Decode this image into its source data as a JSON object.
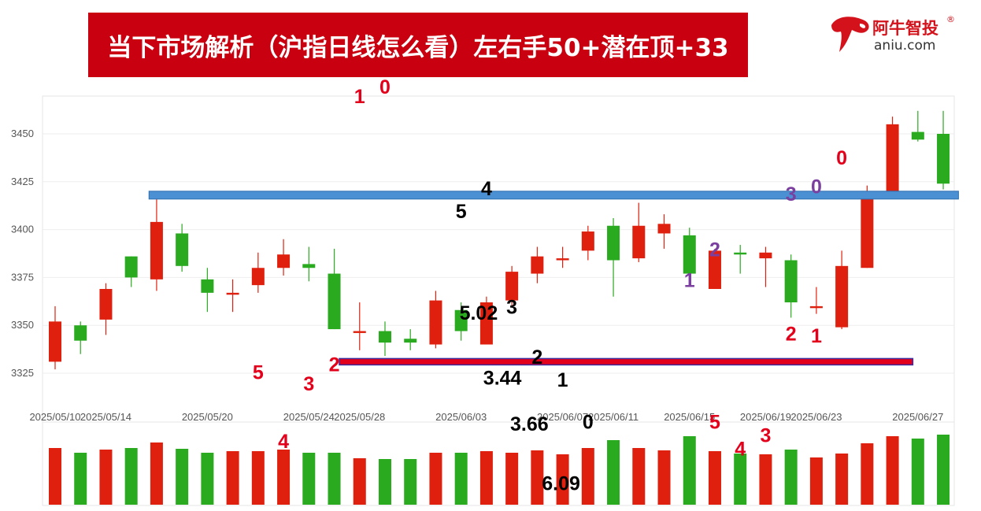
{
  "header": {
    "title": "当下市场解析（沪指日线怎么看）左右手50+潜在顶+33",
    "logo_cn": "阿牛智投",
    "logo_reg": "®",
    "logo_en": "aniu.com"
  },
  "colors": {
    "up": "#e0200e",
    "down": "#2aaa1f",
    "banner": "#c8000f",
    "resistance_line": "#4a90d2",
    "support_line": "#e3001b",
    "count_red": "#e3001b",
    "count_black": "#000000",
    "count_purple": "#7b3fa0"
  },
  "chart_data": {
    "type": "candlestick",
    "ylim": [
      3305,
      3465
    ],
    "yticks": [
      3325,
      3350,
      3375,
      3400,
      3425,
      3450
    ],
    "grid": true,
    "x_tick_labels": [
      {
        "i": 0,
        "label": "2025/05/10"
      },
      {
        "i": 2,
        "label": "2025/05/14"
      },
      {
        "i": 6,
        "label": "2025/05/20"
      },
      {
        "i": 10,
        "label": "2025/05/24"
      },
      {
        "i": 12,
        "label": "2025/05/28"
      },
      {
        "i": 16,
        "label": "2025/06/03"
      },
      {
        "i": 20,
        "label": "2025/06/07"
      },
      {
        "i": 22,
        "label": "2025/06/11"
      },
      {
        "i": 25,
        "label": "2025/06/15"
      },
      {
        "i": 28,
        "label": "2025/06/19"
      },
      {
        "i": 30,
        "label": "2025/06/23"
      },
      {
        "i": 34,
        "label": "2025/06/27"
      }
    ],
    "candles": [
      {
        "o": 3331,
        "c": 3352,
        "h": 3360,
        "l": 3327
      },
      {
        "o": 3350,
        "c": 3342,
        "h": 3352,
        "l": 3335
      },
      {
        "o": 3353,
        "c": 3369,
        "h": 3372,
        "l": 3345
      },
      {
        "o": 3386,
        "c": 3375,
        "h": 3386,
        "l": 3370
      },
      {
        "o": 3374,
        "c": 3404,
        "h": 3417,
        "l": 3368
      },
      {
        "o": 3398,
        "c": 3381,
        "h": 3403,
        "l": 3378
      },
      {
        "o": 3374,
        "c": 3367,
        "h": 3380,
        "l": 3357
      },
      {
        "o": 3366,
        "c": 3367,
        "h": 3374,
        "l": 3357
      },
      {
        "o": 3371,
        "c": 3380,
        "h": 3388,
        "l": 3367
      },
      {
        "o": 3380,
        "c": 3387,
        "h": 3395,
        "l": 3376
      },
      {
        "o": 3382,
        "c": 3380,
        "h": 3391,
        "l": 3373
      },
      {
        "o": 3377,
        "c": 3348,
        "h": 3390,
        "l": 3348
      },
      {
        "o": 3346,
        "c": 3347,
        "h": 3362,
        "l": 3337
      },
      {
        "o": 3347,
        "c": 3341,
        "h": 3352,
        "l": 3334
      },
      {
        "o": 3343,
        "c": 3341,
        "h": 3348,
        "l": 3337
      },
      {
        "o": 3340,
        "c": 3363,
        "h": 3368,
        "l": 3338
      },
      {
        "o": 3358,
        "c": 3347,
        "h": 3362,
        "l": 3342
      },
      {
        "o": 3340,
        "c": 3362,
        "h": 3365,
        "l": 3340
      },
      {
        "o": 3363,
        "c": 3378,
        "h": 3381,
        "l": 3360
      },
      {
        "o": 3377,
        "c": 3386,
        "h": 3391,
        "l": 3372
      },
      {
        "o": 3384,
        "c": 3385,
        "h": 3391,
        "l": 3380
      },
      {
        "o": 3389,
        "c": 3399,
        "h": 3402,
        "l": 3384
      },
      {
        "o": 3402,
        "c": 3384,
        "h": 3406,
        "l": 3365
      },
      {
        "o": 3385,
        "c": 3402,
        "h": 3414,
        "l": 3383
      },
      {
        "o": 3398,
        "c": 3403,
        "h": 3408,
        "l": 3390
      },
      {
        "o": 3397,
        "c": 3377,
        "h": 3401,
        "l": 3373
      },
      {
        "o": 3369,
        "c": 3389,
        "h": 3390,
        "l": 3369
      },
      {
        "o": 3388,
        "c": 3387,
        "h": 3392,
        "l": 3377
      },
      {
        "o": 3385,
        "c": 3388,
        "h": 3391,
        "l": 3370
      },
      {
        "o": 3384,
        "c": 3362,
        "h": 3387,
        "l": 3354
      },
      {
        "o": 3359,
        "c": 3360,
        "h": 3370,
        "l": 3356
      },
      {
        "o": 3349,
        "c": 3381,
        "h": 3389,
        "l": 3348
      },
      {
        "o": 3380,
        "c": 3420,
        "h": 3423,
        "l": 3380
      },
      {
        "o": 3420,
        "c": 3455,
        "h": 3459,
        "l": 3420
      },
      {
        "o": 3451,
        "c": 3447,
        "h": 3462,
        "l": 3446
      },
      {
        "o": 3450,
        "c": 3424,
        "h": 3462,
        "l": 3421
      }
    ],
    "volume": [
      0.72,
      0.66,
      0.7,
      0.72,
      0.79,
      0.71,
      0.66,
      0.68,
      0.68,
      0.7,
      0.66,
      0.66,
      0.59,
      0.58,
      0.58,
      0.66,
      0.66,
      0.68,
      0.66,
      0.69,
      0.64,
      0.72,
      0.82,
      0.72,
      0.69,
      0.87,
      0.68,
      0.65,
      0.64,
      0.7,
      0.6,
      0.65,
      0.78,
      0.87,
      0.84,
      0.89
    ],
    "resistance_line": {
      "y": 3418,
      "i_start": 3.7,
      "i_end": 35.6
    },
    "support_line": {
      "y": 3331,
      "i_start": 11.2,
      "i_end": 33.8
    },
    "count_labels": [
      {
        "i": 8,
        "text": "5",
        "y": 3322,
        "color": "red"
      },
      {
        "i": 9,
        "text": "4",
        "y": 3286,
        "color": "red"
      },
      {
        "i": 10,
        "text": "3",
        "y": 3316,
        "color": "red"
      },
      {
        "i": 11,
        "text": "2",
        "y": 3326,
        "color": "red"
      },
      {
        "i": 12,
        "text": "1",
        "y": 3466,
        "color": "red"
      },
      {
        "i": 13,
        "text": "0",
        "y": 3471,
        "color": "red"
      },
      {
        "i": 16,
        "text": "5",
        "y": 3406,
        "color": "black"
      },
      {
        "i": 17,
        "text": "4",
        "y": 3418,
        "color": "black"
      },
      {
        "i": 18,
        "text": "3",
        "y": 3356,
        "color": "black"
      },
      {
        "i": 19,
        "text": "2",
        "y": 3330,
        "color": "black"
      },
      {
        "i": 20,
        "text": "1",
        "y": 3318,
        "color": "black"
      },
      {
        "i": 21,
        "text": "0",
        "y": 3296,
        "color": "black"
      },
      {
        "i": 17,
        "text": "5.02",
        "y": 3353,
        "color": "black",
        "dx": -10
      },
      {
        "i": 18,
        "text": "3.44",
        "y": 3319,
        "color": "black",
        "dx": -12
      },
      {
        "i": 19,
        "text": "3.66",
        "y": 3295,
        "color": "black",
        "dx": -10
      },
      {
        "i": 20,
        "text": "6.09",
        "y": 3264,
        "color": "black",
        "dx": -2
      },
      {
        "i": 25,
        "text": "1",
        "y": 3370,
        "color": "purple"
      },
      {
        "i": 26,
        "text": "2",
        "y": 3386,
        "color": "purple"
      },
      {
        "i": 26,
        "text": "5",
        "y": 3296,
        "color": "red"
      },
      {
        "i": 27,
        "text": "4",
        "y": 3282,
        "color": "red"
      },
      {
        "i": 28,
        "text": "3",
        "y": 3289,
        "color": "red"
      },
      {
        "i": 29,
        "text": "2",
        "y": 3342,
        "color": "red"
      },
      {
        "i": 29,
        "text": "3",
        "y": 3415,
        "color": "purple"
      },
      {
        "i": 30,
        "text": "1",
        "y": 3341,
        "color": "red"
      },
      {
        "i": 30,
        "text": "0",
        "y": 3419,
        "color": "purple"
      },
      {
        "i": 31,
        "text": "0",
        "y": 3434,
        "color": "red"
      }
    ]
  }
}
